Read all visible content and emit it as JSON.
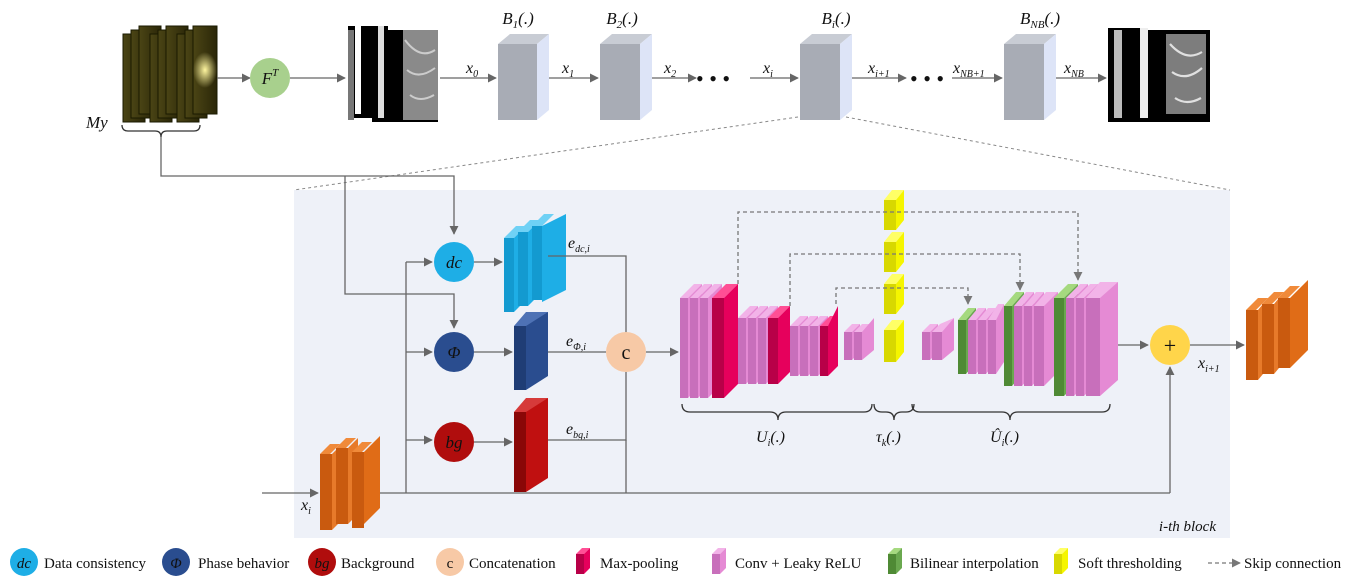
{
  "top": {
    "input_label": "My",
    "ft": {
      "base": "F",
      "sup": "T"
    },
    "blocks": [
      {
        "base": "B",
        "sub": "1",
        "suffix": "(.)"
      },
      {
        "base": "B",
        "sub": "2",
        "suffix": "(.)"
      },
      {
        "base": "B",
        "sub": "i",
        "suffix": "(.)"
      },
      {
        "base": "B",
        "sub": "NB",
        "suffix": "(.)"
      }
    ],
    "edges": [
      {
        "base": "x",
        "sub": "0"
      },
      {
        "base": "x",
        "sub": "1"
      },
      {
        "base": "x",
        "sub": "2"
      },
      {
        "base": "x",
        "sub": "i"
      },
      {
        "base": "x",
        "sub": "i+1"
      },
      {
        "base": "x",
        "sub": "NB+1"
      },
      {
        "base": "x",
        "sub": "NB"
      }
    ],
    "dots": "• • •"
  },
  "block": {
    "caption": "i-th block",
    "input": {
      "base": "x",
      "sub": "i"
    },
    "output": {
      "base": "x",
      "sub": "i+1"
    },
    "dc": "dc",
    "phi": "Φ",
    "bg": "bg",
    "concat": "c",
    "plus": "+",
    "e_dc": {
      "base": "e",
      "sub": "dc,i"
    },
    "e_phi": {
      "base": "e",
      "sub": "Φ,i"
    },
    "e_bg": {
      "base": "e",
      "sub": "bg,i"
    },
    "u_label": {
      "base": "U",
      "sub": "i",
      "suffix": "(.)"
    },
    "tau_label": {
      "base": "τ",
      "sub": "k",
      "suffix": "(.)"
    },
    "uhat_label": {
      "base": "Û",
      "sub": "i",
      "suffix": "(.)"
    }
  },
  "legend": [
    {
      "sym": "dc",
      "label": "Data consistency"
    },
    {
      "sym": "Φ",
      "label": "Phase behavior"
    },
    {
      "sym": "bg",
      "label": "Background"
    },
    {
      "sym": "c",
      "label": "Concatenation"
    },
    {
      "sym": "",
      "label": "Max-pooling"
    },
    {
      "sym": "",
      "label": "Conv + Leaky ReLU"
    },
    {
      "sym": "",
      "label": "Bilinear interpolation"
    },
    {
      "sym": "",
      "label": "Soft thresholding"
    },
    {
      "sym": "",
      "label": "Skip connection"
    }
  ],
  "colors": {
    "dc": "#1eaee6",
    "phi": "#2a4d8f",
    "bg": "#b00d0d",
    "concat": "#f7c9a6",
    "plus": "#ffd54a",
    "ft": "#a8d08d",
    "maxpool": "#e6005c",
    "conv": "#e58ad4",
    "bilinear": "#6aa84f",
    "soft": "#f5f500",
    "orange": "#e06c17",
    "panel": "#eef1f8",
    "gray_block": "#a8acb5"
  }
}
